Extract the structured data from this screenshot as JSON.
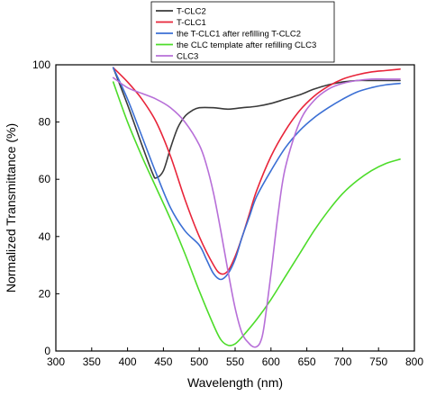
{
  "chart_data": {
    "type": "line",
    "xlabel": "Wavelength  (nm)",
    "ylabel": "Normalized Transmittance (%)",
    "xlim": [
      300,
      800
    ],
    "ylim": [
      0,
      100
    ],
    "xticks": [
      300,
      350,
      400,
      450,
      500,
      550,
      600,
      650,
      700,
      750,
      800
    ],
    "yticks": [
      0,
      20,
      40,
      60,
      80,
      100
    ],
    "grid": false,
    "legend_position": "top, above plot",
    "series": [
      {
        "name": "T-CLC2",
        "color": "#3a3a3a",
        "x": [
          380,
          400,
          420,
          435,
          440,
          450,
          460,
          470,
          480,
          490,
          500,
          520,
          540,
          560,
          580,
          600,
          620,
          640,
          660,
          680,
          700,
          720,
          740,
          760,
          780
        ],
        "y": [
          99,
          86,
          72,
          62,
          60.5,
          63,
          71,
          78,
          82,
          84,
          85,
          85,
          84.5,
          85,
          85.5,
          86.5,
          88,
          89.5,
          91.5,
          93,
          94,
          94.5,
          94.5,
          94.5,
          94.5
        ]
      },
      {
        "name": "T-CLC1",
        "color": "#e8253a",
        "x": [
          380,
          400,
          420,
          440,
          460,
          480,
          500,
          520,
          530,
          540,
          550,
          560,
          570,
          580,
          600,
          620,
          640,
          660,
          680,
          700,
          720,
          740,
          760,
          780
        ],
        "y": [
          99,
          94,
          88,
          80,
          68,
          53,
          40,
          30,
          27,
          28,
          33,
          40,
          48,
          56,
          68,
          77,
          84,
          89,
          92.5,
          95,
          96.5,
          97.5,
          98,
          98.5
        ]
      },
      {
        "name": "the T-CLC1 after refilling T-CLC2",
        "color": "#3b6fd4",
        "x": [
          380,
          400,
          420,
          440,
          460,
          480,
          500,
          510,
          520,
          530,
          540,
          550,
          560,
          570,
          580,
          600,
          620,
          640,
          660,
          680,
          700,
          720,
          740,
          760,
          780
        ],
        "y": [
          99,
          88,
          75,
          62,
          50,
          42,
          37,
          32,
          27,
          25,
          27,
          32,
          40,
          47,
          54,
          63,
          71,
          77,
          81.5,
          85,
          88,
          90.5,
          92,
          93,
          93.5
        ]
      },
      {
        "name": "the CLC template after refilling CLC3",
        "color": "#4ddc2a",
        "x": [
          380,
          400,
          420,
          440,
          460,
          480,
          500,
          520,
          530,
          540,
          550,
          560,
          580,
          600,
          620,
          640,
          660,
          680,
          700,
          720,
          740,
          760,
          780
        ],
        "y": [
          94,
          80,
          68,
          57,
          46,
          34,
          21,
          9,
          4,
          2,
          2.5,
          5,
          11,
          18,
          26,
          34,
          42,
          49,
          55,
          59.5,
          63,
          65.5,
          67
        ]
      },
      {
        "name": "CLC3",
        "color": "#b76fd8",
        "x": [
          380,
          400,
          420,
          440,
          460,
          480,
          500,
          510,
          520,
          530,
          540,
          550,
          560,
          570,
          575,
          580,
          585,
          590,
          600,
          610,
          620,
          640,
          660,
          680,
          700,
          720,
          740,
          760,
          780
        ],
        "y": [
          95.5,
          92,
          90,
          88,
          85,
          80,
          72,
          65,
          55,
          42,
          28,
          15,
          6,
          2.5,
          1.5,
          1.5,
          3,
          8,
          27,
          48,
          64,
          80,
          87.5,
          91.5,
          93.5,
          94.5,
          95,
          95,
          95
        ]
      }
    ]
  }
}
